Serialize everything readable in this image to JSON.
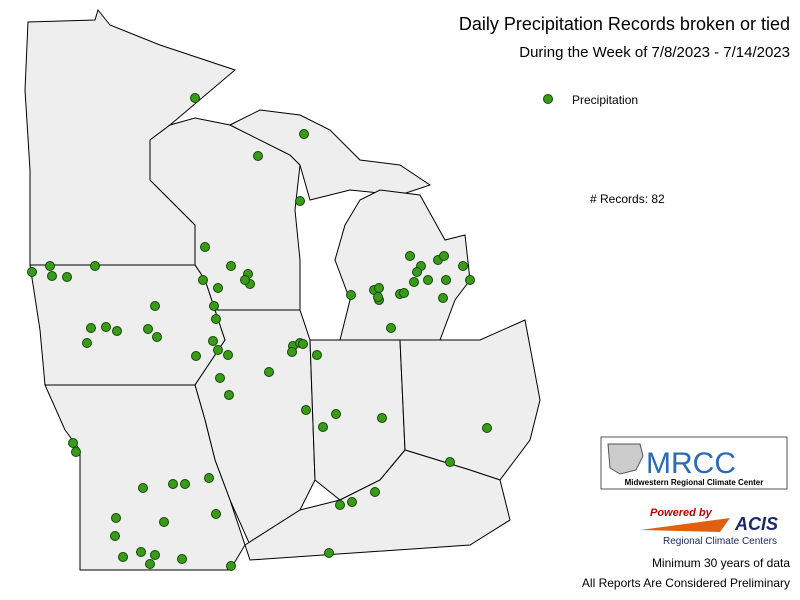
{
  "title": "Daily Precipitation Records broken or tied",
  "subtitle": "During the Week of 7/8/2023 - 7/14/2023",
  "legend": {
    "label": "Precipitation"
  },
  "records": "# Records: 82",
  "logo": {
    "name": "MRCC",
    "full_name": "Midwestern Regional Climate Center"
  },
  "acis": {
    "powered": "Powered by",
    "name": "ACIS",
    "subtitle": "Regional Climate Centers"
  },
  "notes": [
    "Minimum 30 years of data",
    "All Reports Are Considered Preliminary"
  ]
}
